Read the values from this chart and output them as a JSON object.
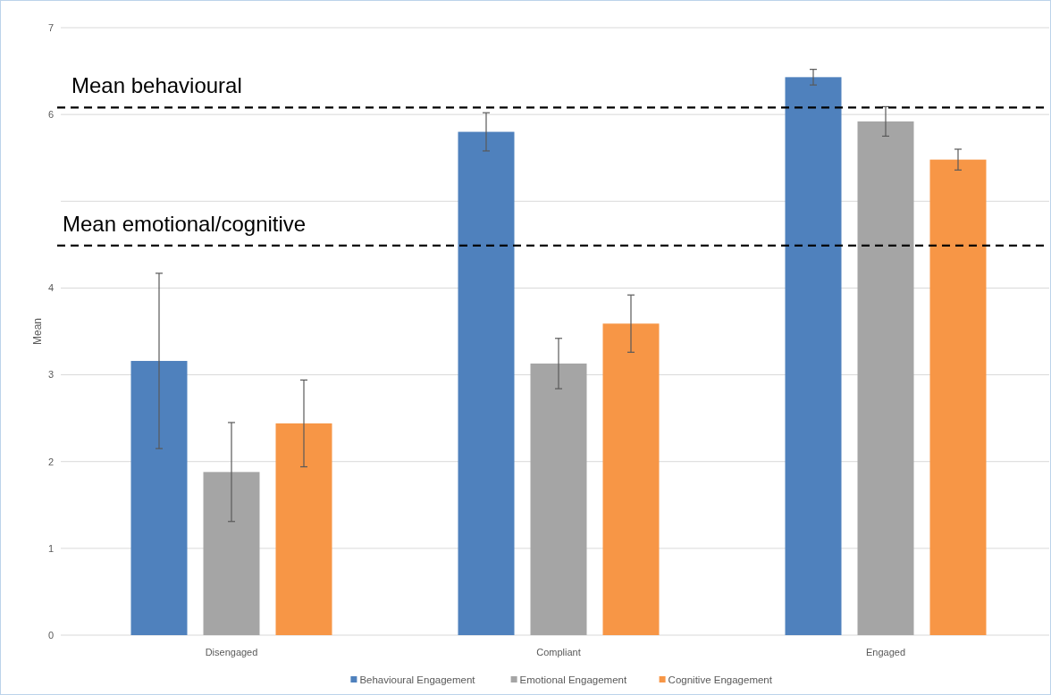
{
  "chart_data": {
    "type": "bar",
    "ylabel": "Mean",
    "categories": [
      "Disengaged",
      "Compliant",
      "Engaged"
    ],
    "series": [
      {
        "name": "Behavioural Engagement",
        "color": "#4f81bd",
        "values": [
          3.16,
          5.8,
          6.43
        ],
        "errors": [
          1.01,
          0.22,
          0.09
        ]
      },
      {
        "name": "Emotional Engagement",
        "color": "#a5a5a5",
        "values": [
          1.88,
          3.13,
          5.92
        ],
        "errors": [
          0.57,
          0.29,
          0.17
        ]
      },
      {
        "name": "Cognitive Engagement",
        "color": "#f79646",
        "values": [
          2.44,
          3.59,
          5.48
        ],
        "errors": [
          0.5,
          0.33,
          0.12
        ]
      }
    ],
    "ylim": [
      0,
      7
    ],
    "yticks": [
      0,
      1,
      2,
      3,
      4,
      {
        "value": 5,
        "label": null
      },
      6,
      7
    ],
    "grid": "y",
    "legend": "bottom",
    "ref_lines": [
      {
        "axis": "y",
        "value": 6.08,
        "label": "Mean behavioural",
        "color": "#000000",
        "line_style": "dashed"
      },
      {
        "axis": "y",
        "value": 4.49,
        "label": "Mean emotional/cognitive",
        "color": "#000000",
        "line_style": "dashed"
      }
    ]
  }
}
